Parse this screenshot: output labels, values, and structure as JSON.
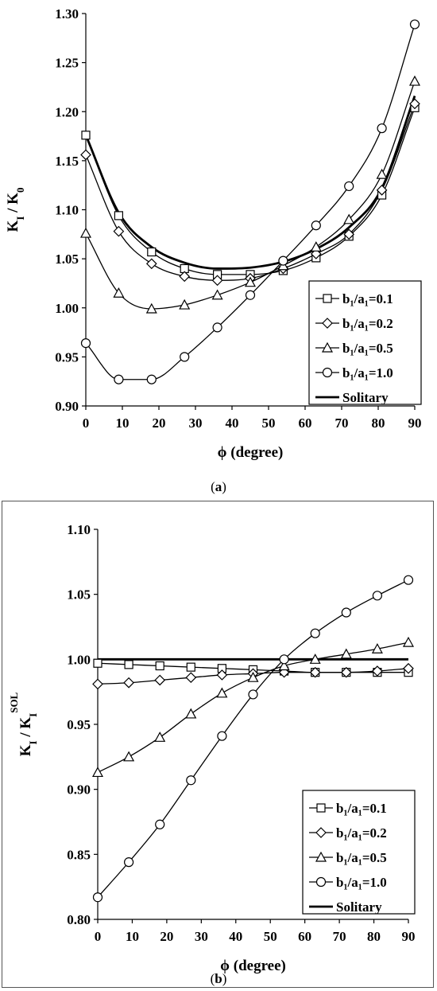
{
  "chart_data": [
    {
      "type": "line",
      "panel_label": "a",
      "ylabel_main": "K",
      "ylabel_sub": "I",
      "ylabel_mid": " / K",
      "ylabel_sub2": "0",
      "xlabel": "ϕ (degree)",
      "xlim": [
        0,
        90
      ],
      "ylim": [
        0.9,
        1.3
      ],
      "xticks": [
        0,
        10,
        20,
        30,
        40,
        50,
        60,
        70,
        80,
        90
      ],
      "yticks": [
        0.9,
        0.95,
        1.0,
        1.05,
        1.1,
        1.15,
        1.2,
        1.25,
        1.3
      ],
      "ytick_decimals": 2,
      "legend_position": "bottom-right",
      "x": [
        0,
        9,
        18,
        27,
        36,
        45,
        54,
        63,
        72,
        81,
        90
      ],
      "series": [
        {
          "name": "b₁/a₁=0.1",
          "marker": "square",
          "values": [
            1.176,
            1.094,
            1.057,
            1.04,
            1.034,
            1.034,
            1.038,
            1.051,
            1.073,
            1.115,
            1.204
          ]
        },
        {
          "name": "b₁/a₁=0.2",
          "marker": "diamond",
          "values": [
            1.156,
            1.078,
            1.045,
            1.032,
            1.028,
            1.03,
            1.04,
            1.055,
            1.075,
            1.12,
            1.208
          ]
        },
        {
          "name": "b₁/a₁=0.5",
          "marker": "triangle",
          "values": [
            1.076,
            1.015,
            0.999,
            1.003,
            1.013,
            1.026,
            1.043,
            1.062,
            1.09,
            1.136,
            1.231
          ]
        },
        {
          "name": "b₁/a₁=1.0",
          "marker": "circle",
          "values": [
            0.964,
            0.927,
            0.927,
            0.95,
            0.98,
            1.013,
            1.048,
            1.084,
            1.124,
            1.183,
            1.289
          ]
        },
        {
          "name": "Solitary",
          "marker": "none",
          "values": [
            1.176,
            1.097,
            1.062,
            1.046,
            1.04,
            1.041,
            1.047,
            1.06,
            1.082,
            1.122,
            1.216
          ]
        }
      ]
    },
    {
      "type": "line",
      "panel_label": "b",
      "ylabel_main": "K",
      "ylabel_sub": "I",
      "ylabel_mid": " / K",
      "ylabel_sub2": "I",
      "ylabel_sup2": "SOL",
      "xlabel": "ϕ (degree)",
      "xlim": [
        0,
        90
      ],
      "ylim": [
        0.8,
        1.1
      ],
      "xticks": [
        0,
        10,
        20,
        30,
        40,
        50,
        60,
        70,
        80,
        90
      ],
      "yticks": [
        0.8,
        0.85,
        0.9,
        0.95,
        1.0,
        1.05,
        1.1
      ],
      "ytick_decimals": 2,
      "legend_position": "bottom-right",
      "x": [
        0,
        9,
        18,
        27,
        36,
        45,
        54,
        63,
        72,
        81,
        90
      ],
      "series": [
        {
          "name": "b₁/a₁=0.1",
          "marker": "square",
          "values": [
            0.997,
            0.996,
            0.995,
            0.994,
            0.993,
            0.992,
            0.991,
            0.99,
            0.99,
            0.99,
            0.99
          ]
        },
        {
          "name": "b₁/a₁=0.2",
          "marker": "diamond",
          "values": [
            0.981,
            0.982,
            0.984,
            0.986,
            0.988,
            0.989,
            0.99,
            0.99,
            0.99,
            0.991,
            0.993
          ]
        },
        {
          "name": "b₁/a₁=0.5",
          "marker": "triangle",
          "values": [
            0.913,
            0.925,
            0.94,
            0.958,
            0.974,
            0.986,
            0.995,
            1.0,
            1.004,
            1.008,
            1.013
          ]
        },
        {
          "name": "b₁/a₁=1.0",
          "marker": "circle",
          "values": [
            0.817,
            0.844,
            0.873,
            0.907,
            0.941,
            0.973,
            1.0,
            1.02,
            1.036,
            1.049,
            1.061
          ]
        },
        {
          "name": "Solitary",
          "marker": "none",
          "values": [
            1.0,
            1.0,
            1.0,
            1.0,
            1.0,
            1.0,
            1.0,
            1.0,
            1.0,
            1.0,
            1.0
          ]
        }
      ]
    }
  ],
  "captions": [
    "a",
    "b"
  ]
}
